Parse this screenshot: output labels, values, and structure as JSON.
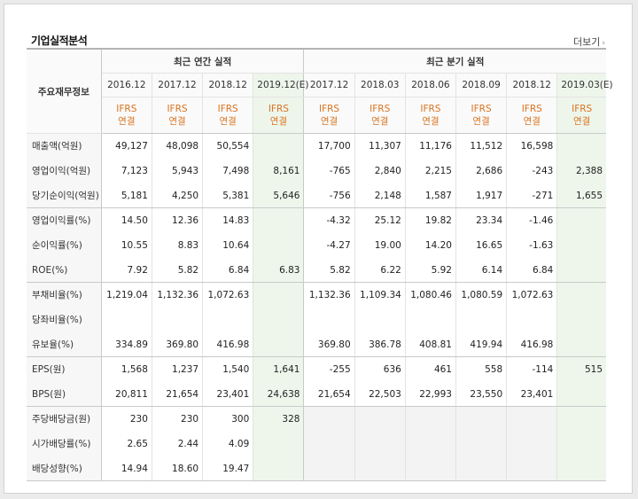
{
  "panel": {
    "title": "기업실적분석",
    "more": "더보기"
  },
  "header": {
    "row_label": "주요재무정보",
    "annual_title": "최근 연간 실적",
    "quarter_title": "최근 분기 실적",
    "annual_periods": [
      "2016.12",
      "2017.12",
      "2018.12",
      "2019.12(E)"
    ],
    "quarter_periods": [
      "2017.12",
      "2018.03",
      "2018.06",
      "2018.09",
      "2018.12",
      "2019.03(E)"
    ],
    "ifrs_top": "IFRS",
    "ifrs_bottom": "연결"
  },
  "colors": {
    "estimate_bg": "#eef6ec",
    "negative": "#c62828",
    "ifrs": "#d9731f"
  },
  "rows": [
    {
      "label": "매출액(억원)",
      "annual": [
        "49,127",
        "48,098",
        "50,554",
        ""
      ],
      "quarter": [
        "17,700",
        "11,307",
        "11,176",
        "11,512",
        "16,598",
        ""
      ]
    },
    {
      "label": "영업이익(억원)",
      "annual": [
        "7,123",
        "5,943",
        "7,498",
        "8,161"
      ],
      "quarter": [
        "-765",
        "2,840",
        "2,215",
        "2,686",
        "-243",
        "2,388"
      ]
    },
    {
      "label": "당기순이익(억원)",
      "annual": [
        "5,181",
        "4,250",
        "5,381",
        "5,646"
      ],
      "quarter": [
        "-756",
        "2,148",
        "1,587",
        "1,917",
        "-271",
        "1,655"
      ]
    },
    {
      "label": "영업이익률(%)",
      "annual": [
        "14.50",
        "12.36",
        "14.83",
        ""
      ],
      "quarter": [
        "-4.32",
        "25.12",
        "19.82",
        "23.34",
        "-1.46",
        ""
      ]
    },
    {
      "label": "순이익률(%)",
      "annual": [
        "10.55",
        "8.83",
        "10.64",
        ""
      ],
      "quarter": [
        "-4.27",
        "19.00",
        "14.20",
        "16.65",
        "-1.63",
        ""
      ]
    },
    {
      "label": "ROE(%)",
      "annual": [
        "7.92",
        "5.82",
        "6.84",
        "6.83"
      ],
      "quarter": [
        "5.82",
        "6.22",
        "5.92",
        "6.14",
        "6.84",
        ""
      ]
    },
    {
      "label": "부채비율(%)",
      "annual": [
        "1,219.04",
        "1,132.36",
        "1,072.63",
        ""
      ],
      "quarter": [
        "1,132.36",
        "1,109.34",
        "1,080.46",
        "1,080.59",
        "1,072.63",
        ""
      ]
    },
    {
      "label": "당좌비율(%)",
      "annual": [
        "",
        "",
        "",
        ""
      ],
      "quarter": [
        "",
        "",
        "",
        "",
        "",
        ""
      ]
    },
    {
      "label": "유보율(%)",
      "annual": [
        "334.89",
        "369.80",
        "416.98",
        ""
      ],
      "quarter": [
        "369.80",
        "386.78",
        "408.81",
        "419.94",
        "416.98",
        ""
      ]
    },
    {
      "label": "EPS(원)",
      "annual": [
        "1,568",
        "1,237",
        "1,540",
        "1,641"
      ],
      "quarter": [
        "-255",
        "636",
        "461",
        "558",
        "-114",
        "515"
      ]
    },
    {
      "label": "BPS(원)",
      "annual": [
        "20,811",
        "21,654",
        "23,401",
        "24,638"
      ],
      "quarter": [
        "21,654",
        "22,503",
        "22,993",
        "23,550",
        "23,401",
        ""
      ]
    },
    {
      "label": "주당배당금(원)",
      "annual": [
        "230",
        "230",
        "300",
        "328"
      ],
      "quarter": [
        "",
        "",
        "",
        "",
        "",
        ""
      ]
    },
    {
      "label": "시가배당률(%)",
      "annual": [
        "2.65",
        "2.44",
        "4.09",
        ""
      ],
      "quarter": [
        "",
        "",
        "",
        "",
        "",
        ""
      ]
    },
    {
      "label": "배당성향(%)",
      "annual": [
        "14.94",
        "18.60",
        "19.47",
        ""
      ],
      "quarter": [
        "",
        "",
        "",
        "",
        "",
        ""
      ]
    }
  ]
}
